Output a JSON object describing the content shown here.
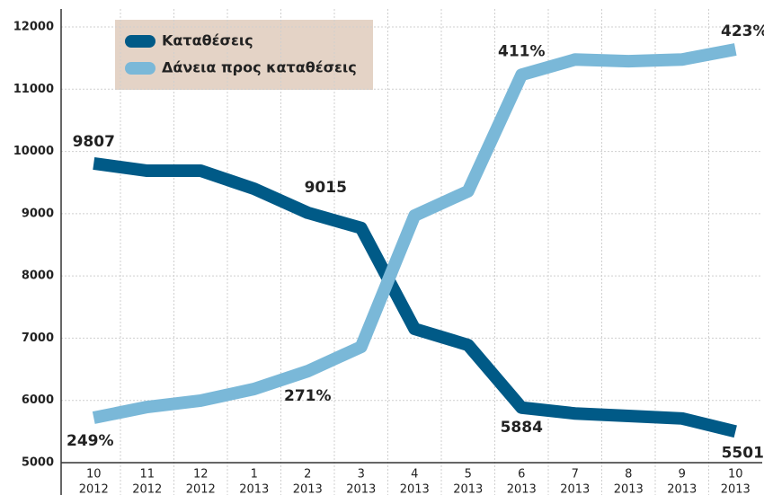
{
  "chart_data": {
    "type": "line",
    "categories": [
      [
        "10",
        "2012"
      ],
      [
        "11",
        "2012"
      ],
      [
        "12",
        "2012"
      ],
      [
        "1",
        "2013"
      ],
      [
        "2",
        "2013"
      ],
      [
        "3",
        "2013"
      ],
      [
        "4",
        "2013"
      ],
      [
        "5",
        "2013"
      ],
      [
        "6",
        "2013"
      ],
      [
        "7",
        "2013"
      ],
      [
        "8",
        "2013"
      ],
      [
        "9",
        "2013"
      ],
      [
        "10",
        "2013"
      ]
    ],
    "series": [
      {
        "name": "Καταθέσεις",
        "color": "#005a87",
        "values": [
          9807,
          9690,
          9690,
          9400,
          9015,
          8770,
          7150,
          6890,
          5884,
          5790,
          5750,
          5710,
          5501
        ],
        "value_labels": [
          "9807",
          null,
          null,
          null,
          "9015",
          null,
          null,
          null,
          "5884",
          null,
          null,
          null,
          "5501"
        ]
      },
      {
        "name": "Δάνεια προς καταθέσεις",
        "color": "#7ab8d8",
        "axis": "y2",
        "values": [
          249,
          254.1,
          257.1,
          262.6,
          271,
          282.5,
          344.5,
          356,
          411,
          418.2,
          417.4,
          418.2,
          423
        ],
        "value_labels": [
          "249%",
          null,
          null,
          null,
          "271%",
          null,
          null,
          null,
          "411%",
          null,
          null,
          null,
          "423%"
        ]
      }
    ],
    "ylim": [
      5000,
      12000
    ],
    "yticks": [
      5000,
      6000,
      7000,
      8000,
      9000,
      10000,
      11000,
      12000
    ],
    "y2lim": [
      227.8,
      433.6
    ],
    "grid": true
  }
}
